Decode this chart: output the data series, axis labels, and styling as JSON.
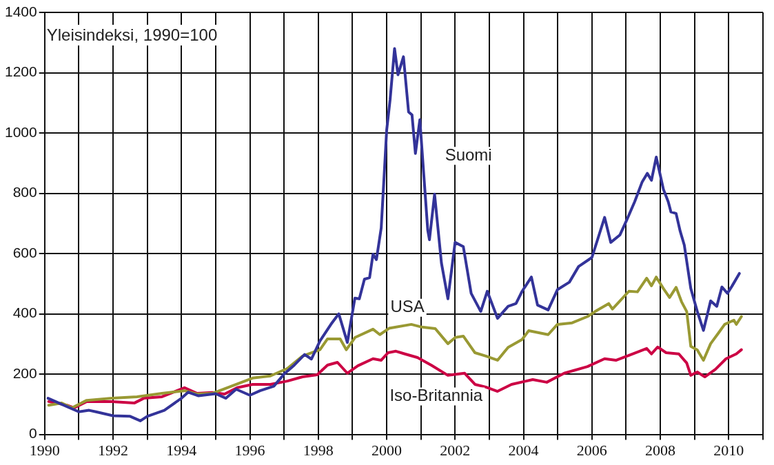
{
  "chart_data": {
    "type": "line",
    "ylabel": "Yleisindeksi, 1990=100",
    "xlim": [
      1990,
      2011
    ],
    "ylim": [
      0,
      1400
    ],
    "xticks": [
      1990,
      {
        "value": 1991,
        "label": null
      },
      1992,
      {
        "value": 1993,
        "label": null
      },
      1994,
      {
        "value": 1995,
        "label": null
      },
      1996,
      {
        "value": 1997,
        "label": null
      },
      1998,
      {
        "value": 1999,
        "label": null
      },
      2000,
      {
        "value": 2001,
        "label": null
      },
      2002,
      {
        "value": 2003,
        "label": null
      },
      2004,
      {
        "value": 2005,
        "label": null
      },
      2006,
      {
        "value": 2007,
        "label": null
      },
      2008,
      {
        "value": 2009,
        "label": null
      },
      2010,
      {
        "value": 2011,
        "label": null
      }
    ],
    "yticks": [
      0,
      200,
      400,
      600,
      800,
      1000,
      1200,
      1400
    ],
    "grid": true,
    "legend": false,
    "marker": "none",
    "line_style": "solid",
    "series": [
      {
        "name": "Suomi",
        "color": "#333399",
        "x": [
          1990.1,
          1990.5,
          1991.0,
          1991.3,
          1991.5,
          1992.0,
          1992.5,
          1992.8,
          1993.0,
          1993.5,
          1994.0,
          1994.2,
          1994.5,
          1995.0,
          1995.3,
          1995.6,
          1996.0,
          1996.3,
          1996.7,
          1997.0,
          1997.3,
          1997.6,
          1997.8,
          1998.05,
          1998.4,
          1998.6,
          1998.85,
          1999.07,
          1999.2,
          1999.35,
          1999.5,
          1999.6,
          1999.7,
          1999.84,
          2000.0,
          2000.1,
          2000.23,
          2000.33,
          2000.49,
          2000.64,
          2000.74,
          2000.84,
          2000.97,
          2001.2,
          2001.25,
          2001.4,
          2001.6,
          2001.79,
          2002.0,
          2002.24,
          2002.47,
          2002.75,
          2002.94,
          2003.24,
          2003.55,
          2003.78,
          2003.96,
          2004.23,
          2004.41,
          2004.72,
          2004.99,
          2005.34,
          2005.61,
          2006.0,
          2006.37,
          2006.55,
          2006.82,
          2007.02,
          2007.25,
          2007.47,
          2007.62,
          2007.74,
          2007.88,
          2008.09,
          2008.23,
          2008.31,
          2008.46,
          2008.58,
          2008.7,
          2008.89,
          2009.08,
          2009.26,
          2009.47,
          2009.65,
          2009.8,
          2009.96,
          2010.1,
          2010.31
        ],
        "values": [
          120,
          100,
          75,
          80,
          75,
          62,
          60,
          45,
          60,
          80,
          120,
          140,
          128,
          135,
          120,
          150,
          130,
          145,
          160,
          200,
          230,
          265,
          250,
          310,
          370,
          400,
          305,
          452,
          450,
          515,
          520,
          598,
          580,
          685,
          1010,
          1111,
          1280,
          1193,
          1253,
          1070,
          1060,
          932,
          1044,
          678,
          646,
          797,
          569,
          450,
          637,
          623,
          468,
          408,
          475,
          385,
          425,
          434,
          475,
          522,
          429,
          413,
          480,
          505,
          557,
          587,
          720,
          637,
          662,
          712,
          772,
          838,
          866,
          843,
          920,
          813,
          772,
          738,
          733,
          674,
          628,
          484,
          408,
          345,
          443,
          425,
          489,
          468,
          493,
          534
        ]
      },
      {
        "name": "USA",
        "color": "#999933",
        "x": [
          1990.12,
          1990.5,
          1990.8,
          1991.23,
          1991.97,
          1992.7,
          1993.43,
          1994.09,
          1994.46,
          1994.9,
          1995.34,
          1996.08,
          1996.6,
          1997.1,
          1997.54,
          1998.05,
          1998.27,
          1998.64,
          1998.82,
          1999.08,
          1999.6,
          1999.8,
          2000.07,
          2000.72,
          2001.03,
          2001.42,
          2001.79,
          2002.01,
          2002.24,
          2002.58,
          2002.9,
          2003.24,
          2003.55,
          2003.96,
          2004.15,
          2004.72,
          2004.99,
          2005.42,
          2005.87,
          2006.14,
          2006.49,
          2006.6,
          2007.08,
          2007.33,
          2007.6,
          2007.74,
          2007.88,
          2008.09,
          2008.27,
          2008.46,
          2008.62,
          2008.77,
          2008.89,
          2009.08,
          2009.26,
          2009.47,
          2009.69,
          2009.88,
          2010.15,
          2010.22,
          2010.37
        ],
        "values": [
          97,
          104,
          88,
          113,
          120,
          125,
          136,
          145,
          134,
          136,
          155,
          187,
          194,
          219,
          260,
          281,
          317,
          317,
          281,
          322,
          349,
          331,
          352,
          365,
          356,
          351,
          301,
          322,
          326,
          271,
          260,
          246,
          289,
          315,
          344,
          331,
          365,
          370,
          391,
          411,
          434,
          416,
          475,
          473,
          518,
          493,
          522,
          484,
          454,
          488,
          440,
          408,
          292,
          280,
          246,
          301,
          335,
          365,
          379,
          365,
          391
        ]
      },
      {
        "name": "Iso-Britannia",
        "color": "#cc0044",
        "x": [
          1990.12,
          1990.65,
          1990.87,
          1991.23,
          1991.97,
          1992.62,
          1992.9,
          1993.43,
          1994.09,
          1994.46,
          1994.9,
          1995.26,
          1995.63,
          1996.08,
          1996.6,
          1997.1,
          1997.54,
          1997.97,
          1998.27,
          1998.56,
          1998.85,
          1999.16,
          1999.6,
          1999.84,
          2000.04,
          2000.27,
          2000.53,
          2000.9,
          2001.3,
          2001.79,
          2002.28,
          2002.58,
          2002.9,
          2003.24,
          2003.65,
          2004.27,
          2004.68,
          2005.19,
          2005.87,
          2006.37,
          2006.71,
          2007.08,
          2007.6,
          2007.74,
          2007.92,
          2008.17,
          2008.54,
          2008.77,
          2008.89,
          2009.08,
          2009.3,
          2009.61,
          2009.92,
          2010.22,
          2010.37
        ],
        "values": [
          109,
          97,
          88,
          109,
          109,
          104,
          120,
          125,
          155,
          136,
          139,
          134,
          155,
          166,
          166,
          177,
          191,
          198,
          230,
          239,
          203,
          228,
          251,
          246,
          271,
          276,
          267,
          255,
          230,
          196,
          203,
          166,
          157,
          143,
          166,
          182,
          173,
          203,
          225,
          251,
          246,
          262,
          285,
          267,
          290,
          271,
          267,
          237,
          196,
          207,
          191,
          216,
          251,
          267,
          281
        ]
      }
    ]
  }
}
